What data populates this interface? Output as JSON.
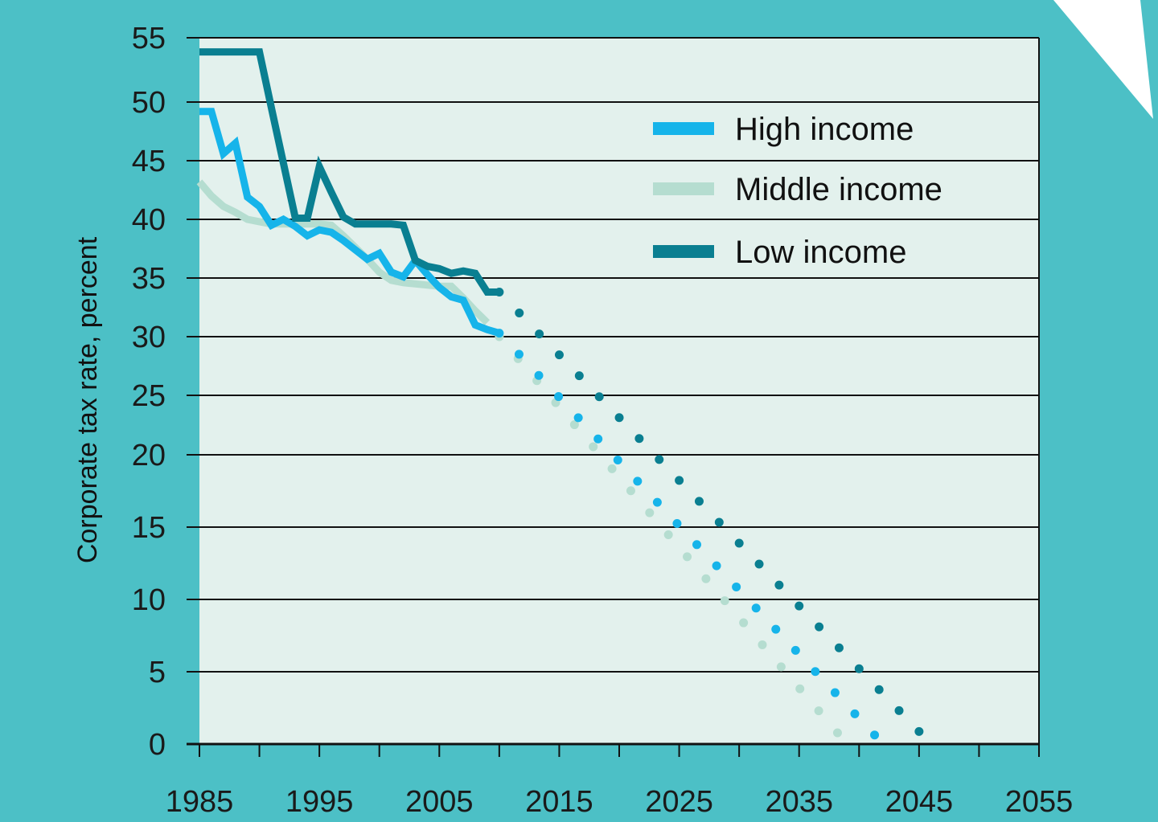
{
  "colors": {
    "background": "#4cc0c6",
    "plot_background": "#e3f1ed",
    "gridline": "#111111",
    "high_income": "#16b4ea",
    "middle_income": "#b5ddd0",
    "low_income": "#0a7f91",
    "decoration": "#ffffff"
  },
  "chart_data": {
    "type": "line",
    "title": "",
    "xlabel": "",
    "ylabel": "Corporate tax rate, percent",
    "xlim": [
      1985,
      2055
    ],
    "ylim": [
      0,
      55
    ],
    "grid": true,
    "legend_position": "top-right",
    "x_ticks": [
      1985,
      1990,
      1995,
      2000,
      2005,
      2010,
      2015,
      2020,
      2025,
      2030,
      2035,
      2040,
      2045,
      2050,
      2055
    ],
    "x_tick_labels": [
      "1985",
      "1995",
      "2005",
      "2015",
      "2025",
      "2035",
      "2045",
      "2055"
    ],
    "y_ticks": [
      0,
      5,
      10,
      15,
      20,
      25,
      30,
      35,
      40,
      45,
      50,
      55
    ],
    "y_tick_labels": [
      "0",
      "5",
      "10",
      "15",
      "20",
      "25",
      "30",
      "35",
      "40",
      "45",
      "50",
      "55"
    ],
    "series": [
      {
        "name": "High income",
        "color_key": "high_income",
        "x": [
          1985,
          1986,
          1987,
          1988,
          1989,
          1990,
          1991,
          1992,
          1993,
          1994,
          1995,
          1996,
          1997,
          1998,
          1999,
          2000,
          2001,
          2002,
          2003,
          2004,
          2005,
          2006,
          2007,
          2008,
          2009,
          2010
        ],
        "y": [
          49.2,
          49.2,
          45.6,
          46.5,
          41.9,
          41.1,
          39.5,
          40.0,
          39.4,
          38.6,
          39.1,
          38.9,
          38.2,
          37.4,
          36.6,
          37.1,
          35.5,
          35.1,
          36.5,
          35.3,
          34.2,
          33.4,
          33.1,
          31.0,
          30.6,
          30.3
        ],
        "projection": {
          "x": [
            2010,
            2042
          ],
          "y": [
            30.3,
            0
          ]
        }
      },
      {
        "name": "Middle income",
        "color_key": "middle_income",
        "x": [
          1985,
          1986,
          1987,
          1988,
          1989,
          1990,
          1991,
          1992,
          1993,
          1994,
          1995,
          1996,
          1997,
          1998,
          1999,
          2000,
          2001,
          2002,
          2003,
          2004,
          2005,
          2006,
          2007,
          2008,
          2009
        ],
        "y": [
          43.2,
          42.0,
          41.1,
          40.6,
          40.0,
          39.8,
          39.6,
          39.6,
          39.6,
          39.6,
          39.6,
          39.5,
          38.6,
          37.6,
          36.6,
          35.5,
          34.8,
          34.6,
          34.5,
          34.4,
          34.3,
          34.3,
          33.3,
          32.2,
          31.2
        ],
        "projection": {
          "x": [
            2010,
            2039
          ],
          "y": [
            30.0,
            0
          ]
        }
      },
      {
        "name": "Low income",
        "color_key": "low_income",
        "x": [
          1985,
          1986,
          1987,
          1988,
          1989,
          1990,
          1991,
          1992,
          1993,
          1994,
          1995,
          1996,
          1997,
          1998,
          1999,
          2000,
          2001,
          2002,
          2003,
          2004,
          2005,
          2006,
          2007,
          2008,
          2009,
          2010
        ],
        "y": [
          53.9,
          53.9,
          53.9,
          53.9,
          53.9,
          53.9,
          49.5,
          44.8,
          40.1,
          40.1,
          44.5,
          42.3,
          40.2,
          39.6,
          39.6,
          39.6,
          39.6,
          39.5,
          36.5,
          36.0,
          35.8,
          35.4,
          35.6,
          35.4,
          33.8,
          33.8
        ],
        "projection": {
          "x": [
            2010,
            2046
          ],
          "y": [
            33.8,
            0
          ]
        }
      }
    ]
  }
}
